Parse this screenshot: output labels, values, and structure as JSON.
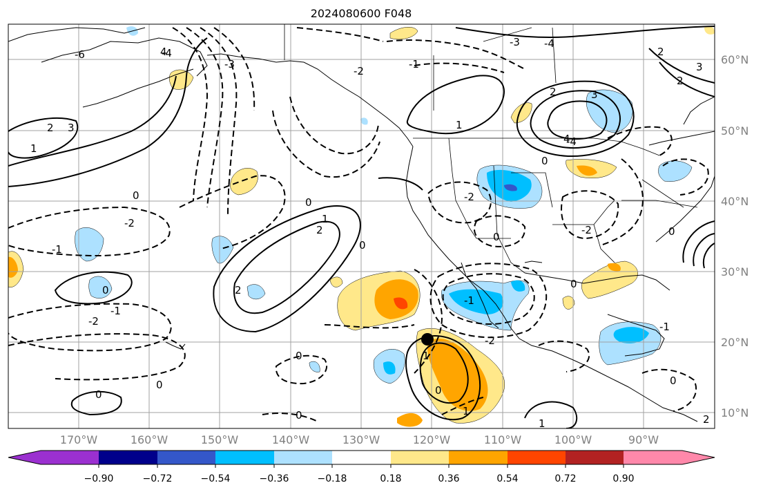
{
  "title": "2024080600 F048",
  "map": {
    "lat_labels": [
      "60°N",
      "50°N",
      "40°N",
      "30°N",
      "20°N",
      "10°N"
    ],
    "lon_labels": [
      "170°W",
      "160°W",
      "150°W",
      "140°W",
      "130°W",
      "120°W",
      "110°W",
      "100°W",
      "90°W"
    ],
    "grid": true,
    "contour_labels": [
      "-6",
      "-4",
      "-3",
      "-2",
      "-1",
      "0",
      "1",
      "2",
      "3",
      "4"
    ],
    "marker": "black dot near 20°N 121°W"
  },
  "colorbar": {
    "extend": "both",
    "tick_labels": [
      "−0.90",
      "−0.72",
      "−0.54",
      "−0.36",
      "−0.18",
      "0.18",
      "0.36",
      "0.54",
      "0.72",
      "0.90"
    ],
    "colors": [
      "#9b30d0",
      "#00008b",
      "#3457c9",
      "#00bfff",
      "#ade1ff",
      "#ffffff",
      "#ffe88a",
      "#ffa500",
      "#ff4500",
      "#b22222",
      "#ff88aa"
    ]
  }
}
